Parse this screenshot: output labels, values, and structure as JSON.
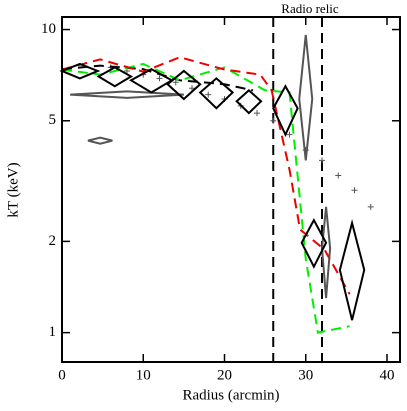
{
  "chart_data": {
    "type": "line",
    "annotation": "Radio relic",
    "xlabel": "Radius (arcmin)",
    "ylabel": "kT (keV)",
    "xlim": [
      0,
      41.6
    ],
    "ylim": [
      0.8,
      11
    ],
    "ylog": true,
    "xticks": [
      0,
      10,
      20,
      30,
      40
    ],
    "yticks": [
      1,
      2,
      5,
      10
    ],
    "relic_x": [
      26,
      32
    ],
    "series": [
      {
        "color": "#555555",
        "marker": "+",
        "x": [
          6,
          8,
          10,
          12,
          14,
          16,
          18,
          20,
          22,
          24,
          26,
          28,
          30,
          32,
          34,
          36,
          38
        ],
        "values": [
          7.5,
          7.3,
          7.1,
          6.9,
          6.7,
          6.4,
          6.1,
          5.9,
          5.6,
          5.3,
          5.0,
          4.5,
          4.0,
          3.7,
          3.3,
          2.95,
          2.6
        ]
      },
      {
        "color": "#000000",
        "dash": true,
        "x": [
          0,
          4.7,
          10,
          14.5,
          20,
          23.5
        ],
        "values": [
          7.4,
          7.6,
          7.4,
          6.8,
          6.6,
          6.3
        ]
      },
      {
        "color": "#00ee00",
        "dash": true,
        "x": [
          0,
          4.7,
          10,
          14.5,
          20,
          25,
          28,
          30,
          31.5,
          35.4
        ],
        "values": [
          7.38,
          7.1,
          7.7,
          6.8,
          7.5,
          6.3,
          6.2,
          1.75,
          1.0,
          1.05
        ]
      },
      {
        "color": "#ee0000",
        "dash": true,
        "x": [
          0,
          4.7,
          10,
          14.5,
          20,
          24.4,
          25.8,
          28,
          29.3,
          32.3,
          35.4
        ],
        "values": [
          7.38,
          7.97,
          7.26,
          8.1,
          7.38,
          7.1,
          6.3,
          3.45,
          2.19,
          1.88,
          1.34
        ]
      }
    ],
    "diamonds": [
      {
        "color": "#555555",
        "x": 8,
        "y": 6.1,
        "xerr": 7,
        "ylo": 5.95,
        "yhi": 6.25
      },
      {
        "color": "#555555",
        "x": 4.7,
        "y": 4.3,
        "xerr": 1.5,
        "ylo": 4.2,
        "yhi": 4.4
      },
      {
        "color": "#555555",
        "x": 30,
        "y": 5.9,
        "xerr": 0.8,
        "ylo": 3.7,
        "yhi": 9.6
      },
      {
        "color": "#555555",
        "x": 32.5,
        "y": 1.9,
        "xerr": 0.5,
        "ylo": 1.3,
        "yhi": 2.6
      },
      {
        "color": "#000000",
        "x": 2.2,
        "y": 7.3,
        "xerr": 2.2,
        "ylo": 6.9,
        "yhi": 7.7
      },
      {
        "color": "#000000",
        "x": 6.5,
        "y": 7.0,
        "xerr": 2,
        "ylo": 6.5,
        "yhi": 7.5
      },
      {
        "color": "#000000",
        "x": 11,
        "y": 6.8,
        "xerr": 2.5,
        "ylo": 6.2,
        "yhi": 7.4
      },
      {
        "color": "#000000",
        "x": 15,
        "y": 6.6,
        "xerr": 2,
        "ylo": 5.9,
        "yhi": 7.3
      },
      {
        "color": "#000000",
        "x": 19,
        "y": 6.2,
        "xerr": 2,
        "ylo": 5.5,
        "yhi": 6.9
      },
      {
        "color": "#000000",
        "x": 23,
        "y": 5.8,
        "xerr": 1.5,
        "ylo": 5.3,
        "yhi": 6.3
      },
      {
        "color": "#000000",
        "x": 27.5,
        "y": 5.5,
        "xerr": 1.5,
        "ylo": 4.5,
        "yhi": 6.5
      },
      {
        "color": "#000000",
        "x": 31,
        "y": 1.98,
        "xerr": 1.5,
        "ylo": 1.65,
        "yhi": 2.35
      },
      {
        "color": "#000000",
        "x": 35.7,
        "y": 1.61,
        "xerr": 1.5,
        "ylo": 1.1,
        "yhi": 2.3
      }
    ]
  }
}
